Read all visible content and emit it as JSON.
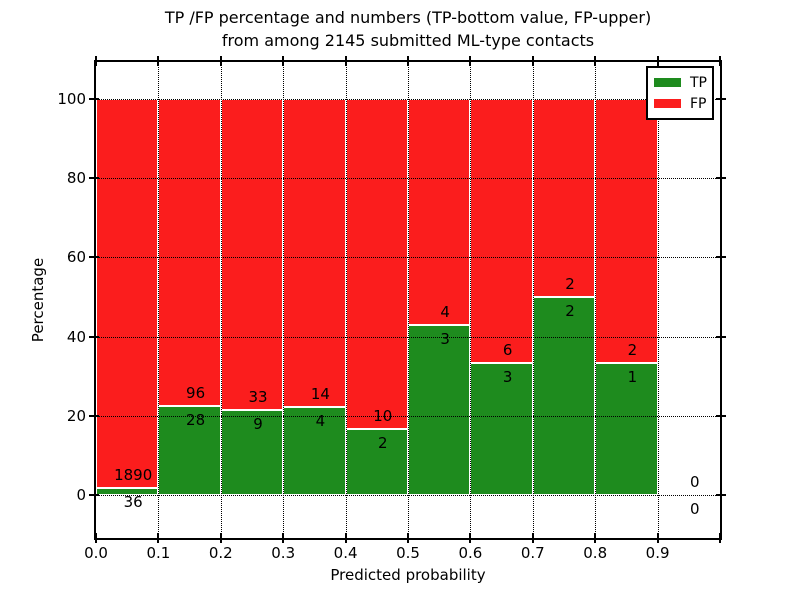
{
  "chart_data": {
    "type": "bar",
    "stacked": true,
    "title_lines": [
      "TP /FP percentage and numbers (TP-bottom value, FP-upper)",
      "from among 2145 submitted ML-type contacts"
    ],
    "total_contacts": 2145,
    "xlabel": "Predicted probability",
    "ylabel": "Percentage",
    "xlim": [
      0.0,
      1.0
    ],
    "ylim": [
      -11,
      109
    ],
    "x_tick_labels": [
      "0.0",
      "0.1",
      "0.2",
      "0.3",
      "0.4",
      "0.5",
      "0.6",
      "0.7",
      "0.8",
      "0.9"
    ],
    "y_tick_values": [
      0,
      20,
      40,
      60,
      80,
      100
    ],
    "grid": "dotted",
    "bar_unit": "percent of bin total (TP% + FP% = 100)",
    "categories": [
      "0.0-0.1",
      "0.1-0.2",
      "0.2-0.3",
      "0.3-0.4",
      "0.4-0.5",
      "0.5-0.6",
      "0.6-0.7",
      "0.7-0.8",
      "0.8-0.9",
      "0.9-1.0"
    ],
    "series": [
      {
        "name": "TP",
        "color": "#1e8b1e",
        "counts": [
          36,
          28,
          9,
          4,
          2,
          3,
          3,
          2,
          1,
          0
        ]
      },
      {
        "name": "FP",
        "color": "#fb1d1d",
        "counts": [
          1890,
          96,
          33,
          14,
          10,
          4,
          6,
          2,
          2,
          0
        ]
      }
    ],
    "legend": {
      "position": "upper right",
      "entries": [
        {
          "label": "TP",
          "color": "#1e8b1e"
        },
        {
          "label": "FP",
          "color": "#fb1d1d"
        }
      ]
    },
    "colors": {
      "background": "#ffffff",
      "spine": "#000000",
      "grid": "#000000",
      "text": "#000000",
      "bar_edge": "#ffffff"
    }
  }
}
